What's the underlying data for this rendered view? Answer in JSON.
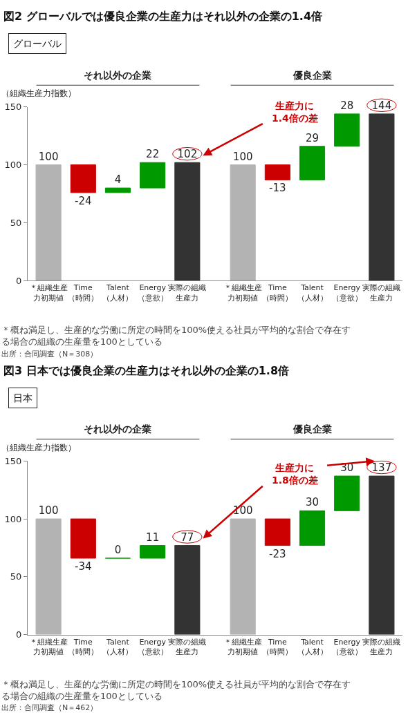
{
  "chart_data": [
    {
      "type": "bar",
      "title": "図2 グローバルでは優良企業の生産力はそれ以外の企業の1.4倍",
      "subtitle": "グローバル",
      "ylabel": "（組織生産力指数）",
      "categories": [
        "＊組織生産力初期値",
        "Time（時間）",
        "Talent（人材）",
        "Energy（意欲）",
        "実際の組織生産力",
        "＊組織生産力初期値",
        "Time（時間）",
        "Talent（人材）",
        "Energy（意欲）",
        "実際の組織生産力"
      ],
      "values": [
        100,
        -24,
        4,
        22,
        102,
        100,
        -13,
        29,
        28,
        144
      ],
      "base": [
        0,
        100,
        76,
        80,
        0,
        0,
        100,
        87,
        116,
        0
      ],
      "colors": [
        "#b3b3b3",
        "#cc0000",
        "#009900",
        "#009900",
        "#333333",
        "#b3b3b3",
        "#cc0000",
        "#009900",
        "#009900",
        "#333333"
      ],
      "ylim": [
        0,
        150
      ],
      "yticks": [
        0,
        50,
        100,
        150
      ],
      "data_labels": true,
      "annotations": [
        "それ以外の企業",
        "優良企業",
        "生産力に\n1.4倍の差",
        "＊概ね満足し、生産的な労働に所定の時間を100%使える社員が平均的な割合で存在する場合の組織の生産量を100としている",
        "出所：合同調査（N＝308）"
      ]
    },
    {
      "type": "bar",
      "title": "図3 日本では優良企業の生産力はそれ以外の企業の1.8倍",
      "subtitle": "日本",
      "ylabel": "（組織生産力指数）",
      "categories": [
        "＊組織生産力初期値",
        "Time（時間）",
        "Talent（人材）",
        "Energy（意欲）",
        "実際の組織生産力",
        "＊組織生産力初期値",
        "Time（時間）",
        "Talent（人材）",
        "Energy（意欲）",
        "実際の組織生産力"
      ],
      "values": [
        100,
        -34,
        0,
        11,
        77,
        100,
        -23,
        30,
        30,
        137
      ],
      "base": [
        0,
        100,
        66,
        66,
        0,
        0,
        100,
        77,
        107,
        0
      ],
      "colors": [
        "#b3b3b3",
        "#cc0000",
        "#009900",
        "#009900",
        "#333333",
        "#b3b3b3",
        "#cc0000",
        "#009900",
        "#009900",
        "#333333"
      ],
      "ylim": [
        0,
        150
      ],
      "yticks": [
        0,
        50,
        100,
        150
      ],
      "data_labels": true,
      "annotations": [
        "それ以外の企業",
        "優良企業",
        "生産力に\n1.8倍の差",
        "＊概ね満足し、生産的な労働に所定の時間を100%使える社員が平均的な割合で存在する場合の組織の生産量を100としている",
        "出所：合同調査（N＝462）"
      ]
    }
  ]
}
